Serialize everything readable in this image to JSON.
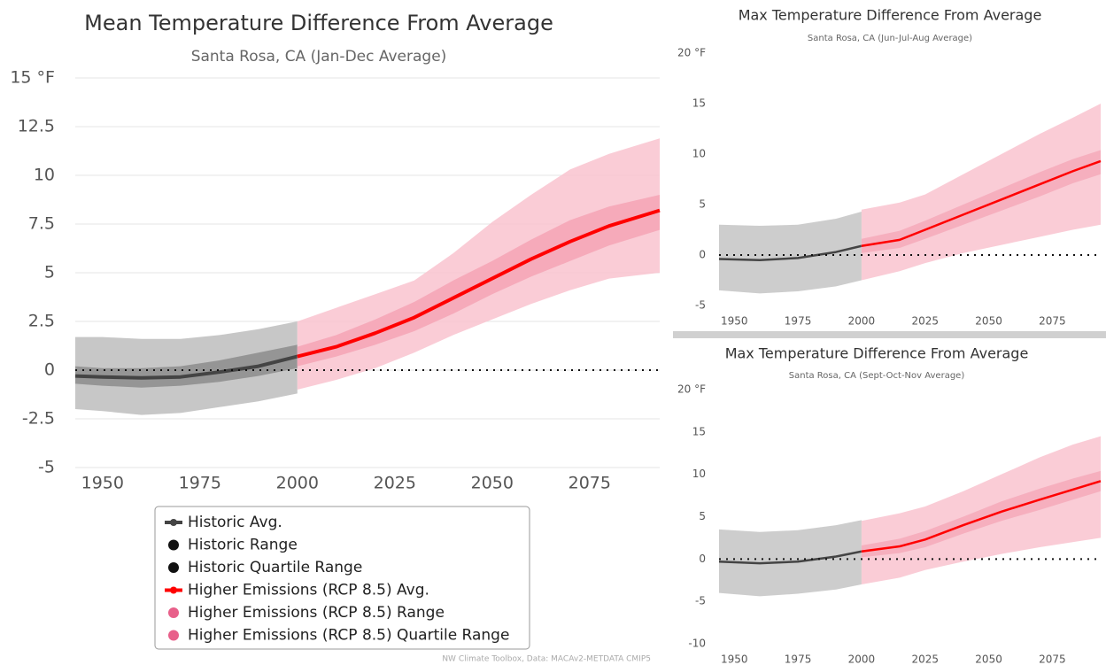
{
  "chart_data": [
    {
      "type": "line",
      "title": "Mean Temperature Difference From Average",
      "subtitle": "Santa Rosa, CA (Jan-Dec Average)",
      "xlim": [
        1943,
        2093
      ],
      "xticks": [
        1950,
        1975,
        2000,
        2025,
        2050,
        2075
      ],
      "ylim": [
        -5,
        15
      ],
      "yticks": [
        -5,
        -2.5,
        0,
        2.5,
        5,
        7.5,
        10,
        12.5,
        {
          "value": 15,
          "label": "15 °F"
        }
      ],
      "grid": true,
      "reference_line": 0,
      "legend": "bottom",
      "credit": "NW Climate Toolbox, Data: MACAv2-METDATA CMIP5",
      "series": [
        {
          "name": "Historic Range",
          "color": "#bdbdbd",
          "x": [
            1943,
            1950,
            1960,
            1970,
            1980,
            1990,
            2000
          ],
          "high": [
            1.7,
            1.7,
            1.6,
            1.6,
            1.8,
            2.1,
            2.5
          ],
          "low": [
            -2.0,
            -2.1,
            -2.3,
            -2.2,
            -1.9,
            -1.6,
            -1.2
          ]
        },
        {
          "name": "Historic Quartile Range",
          "color": "#8c8c8c",
          "x": [
            1943,
            1950,
            1960,
            1970,
            1980,
            1990,
            2000
          ],
          "high": [
            0.2,
            0.1,
            0.1,
            0.2,
            0.5,
            0.9,
            1.3
          ],
          "low": [
            -0.7,
            -0.8,
            -0.9,
            -0.8,
            -0.6,
            -0.3,
            0.1
          ]
        },
        {
          "name": "Historic Avg.",
          "color": "#444444",
          "x": [
            1943,
            1950,
            1960,
            1970,
            1980,
            1990,
            2000
          ],
          "values": [
            -0.3,
            -0.35,
            -0.4,
            -0.35,
            -0.1,
            0.2,
            0.7
          ]
        },
        {
          "name": "Higher Emissions (RCP 8.5) Range",
          "color": "#f9c3cf",
          "x": [
            2000,
            2010,
            2020,
            2030,
            2040,
            2050,
            2060,
            2070,
            2080,
            2093
          ],
          "high": [
            2.5,
            3.2,
            3.9,
            4.6,
            6.0,
            7.6,
            9.0,
            10.3,
            11.1,
            11.9
          ],
          "low": [
            -1.0,
            -0.5,
            0.1,
            0.9,
            1.8,
            2.6,
            3.4,
            4.1,
            4.7,
            5.0
          ]
        },
        {
          "name": "Higher Emissions (RCP 8.5) Quartile Range",
          "color": "#f4a3b5",
          "x": [
            2000,
            2010,
            2020,
            2030,
            2040,
            2050,
            2060,
            2070,
            2080,
            2093
          ],
          "high": [
            1.2,
            1.8,
            2.6,
            3.5,
            4.6,
            5.6,
            6.7,
            7.7,
            8.4,
            9.0
          ],
          "low": [
            0.2,
            0.7,
            1.3,
            2.0,
            2.9,
            3.9,
            4.8,
            5.6,
            6.4,
            7.2
          ]
        },
        {
          "name": "Higher Emissions (RCP 8.5) Avg.",
          "color": "#ff0000",
          "x": [
            2000,
            2010,
            2020,
            2030,
            2040,
            2050,
            2060,
            2070,
            2080,
            2093
          ],
          "values": [
            0.7,
            1.2,
            1.9,
            2.7,
            3.7,
            4.7,
            5.7,
            6.6,
            7.4,
            8.2
          ]
        }
      ]
    },
    {
      "type": "line",
      "title": "Max Temperature Difference From Average",
      "subtitle": "Santa Rosa, CA (Jun-Jul-Aug Average)",
      "xlim": [
        1944,
        2094
      ],
      "xticks": [
        1950,
        1975,
        2000,
        2025,
        2050,
        2075
      ],
      "ylim": [
        -5,
        20
      ],
      "yticks": [
        -5,
        0,
        5,
        10,
        15,
        {
          "value": 20,
          "label": "20 °F"
        }
      ],
      "grid": false,
      "reference_line": 0,
      "series": [
        {
          "name": "Historic Range",
          "color": "#c4c4c4",
          "x": [
            1944,
            1960,
            1975,
            1990,
            2000
          ],
          "high": [
            3.0,
            2.9,
            3.0,
            3.6,
            4.3
          ],
          "low": [
            -3.5,
            -3.8,
            -3.6,
            -3.1,
            -2.5
          ]
        },
        {
          "name": "Historic Avg.",
          "color": "#444444",
          "x": [
            1944,
            1960,
            1975,
            1990,
            2000
          ],
          "values": [
            -0.4,
            -0.5,
            -0.3,
            0.3,
            0.9
          ]
        },
        {
          "name": "Higher Emissions (RCP 8.5) Range",
          "color": "#f9c3cf",
          "x": [
            2000,
            2015,
            2025,
            2040,
            2055,
            2070,
            2083,
            2094
          ],
          "high": [
            4.5,
            5.2,
            6.0,
            8.0,
            10.0,
            12.0,
            13.6,
            15.0
          ],
          "low": [
            -2.5,
            -1.6,
            -0.8,
            0.2,
            1.0,
            1.8,
            2.5,
            3.0
          ]
        },
        {
          "name": "Higher Emissions (RCP 8.5) Quartile Range",
          "color": "#f4a9ba",
          "x": [
            2000,
            2015,
            2025,
            2040,
            2055,
            2070,
            2083,
            2094
          ],
          "high": [
            1.6,
            2.4,
            3.4,
            5.0,
            6.6,
            8.2,
            9.5,
            10.4
          ],
          "low": [
            0.2,
            0.7,
            1.6,
            3.0,
            4.4,
            5.8,
            7.1,
            8.0
          ]
        },
        {
          "name": "Higher Emissions (RCP 8.5) Avg.",
          "color": "#ff0000",
          "x": [
            2000,
            2015,
            2025,
            2040,
            2055,
            2070,
            2083,
            2094
          ],
          "values": [
            0.9,
            1.5,
            2.5,
            4.0,
            5.5,
            7.0,
            8.3,
            9.3
          ]
        }
      ]
    },
    {
      "type": "line",
      "title": "Max Temperature Difference From Average",
      "subtitle": "Santa Rosa, CA (Sept-Oct-Nov Average)",
      "xlim": [
        1944,
        2094
      ],
      "xticks": [
        1950,
        1975,
        2000,
        2025,
        2050,
        2075
      ],
      "ylim": [
        -10,
        20
      ],
      "yticks": [
        -10,
        -5,
        0,
        5,
        10,
        15,
        {
          "value": 20,
          "label": "20 °F"
        }
      ],
      "grid": false,
      "reference_line": 0,
      "series": [
        {
          "name": "Historic Range",
          "color": "#c4c4c4",
          "x": [
            1944,
            1960,
            1975,
            1990,
            2000
          ],
          "high": [
            3.5,
            3.2,
            3.4,
            4.0,
            4.6
          ],
          "low": [
            -4.0,
            -4.4,
            -4.1,
            -3.6,
            -3.0
          ]
        },
        {
          "name": "Historic Avg.",
          "color": "#444444",
          "x": [
            1944,
            1960,
            1975,
            1990,
            2000
          ],
          "values": [
            -0.3,
            -0.5,
            -0.3,
            0.3,
            0.9
          ]
        },
        {
          "name": "Higher Emissions (RCP 8.5) Range",
          "color": "#f9c3cf",
          "x": [
            2000,
            2015,
            2025,
            2040,
            2055,
            2070,
            2083,
            2094
          ],
          "high": [
            4.5,
            5.4,
            6.2,
            8.0,
            10.0,
            12.0,
            13.5,
            14.5
          ],
          "low": [
            -3.0,
            -2.2,
            -1.3,
            -0.3,
            0.6,
            1.4,
            2.0,
            2.5
          ]
        },
        {
          "name": "Higher Emissions (RCP 8.5) Quartile Range",
          "color": "#f4a9ba",
          "x": [
            2000,
            2015,
            2025,
            2040,
            2055,
            2070,
            2083,
            2094
          ],
          "high": [
            1.6,
            2.4,
            3.3,
            5.0,
            6.8,
            8.3,
            9.5,
            10.4
          ],
          "low": [
            0.2,
            0.7,
            1.4,
            3.0,
            4.5,
            5.8,
            7.0,
            8.0
          ]
        },
        {
          "name": "Higher Emissions (RCP 8.5) Avg.",
          "color": "#ff0000",
          "x": [
            2000,
            2015,
            2025,
            2040,
            2055,
            2070,
            2083,
            2094
          ],
          "values": [
            0.9,
            1.5,
            2.3,
            4.0,
            5.6,
            7.0,
            8.2,
            9.2
          ]
        }
      ]
    }
  ]
}
